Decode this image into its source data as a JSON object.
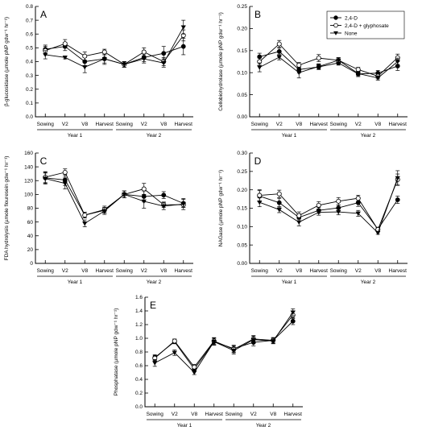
{
  "chart_data": [
    {
      "type": "line",
      "panel": "A",
      "ylabel": "β-glucosidase (µmole pNP gdw⁻¹ hr⁻¹)",
      "ylim": [
        0,
        0.8
      ],
      "yticks": [
        "0.0",
        "0.1",
        "0.2",
        "0.3",
        "0.4",
        "0.5",
        "0.6",
        "0.7",
        "0.8"
      ],
      "categories": [
        "Sowing",
        "V2",
        "V8",
        "Harvest",
        "Sowing",
        "V2",
        "V8",
        "Harvest"
      ],
      "groups": [
        "Year 1",
        "Year 2"
      ],
      "series": [
        {
          "name": "2,4-D",
          "values": [
            0.49,
            0.51,
            0.4,
            0.42,
            0.38,
            0.43,
            0.46,
            0.51
          ],
          "err": [
            0.03,
            0.03,
            0.03,
            0.04,
            0.02,
            0.03,
            0.05,
            0.06
          ]
        },
        {
          "name": "2,4-D + glyphosate",
          "values": [
            0.48,
            0.53,
            0.44,
            0.47,
            0.38,
            0.47,
            0.4,
            0.59
          ],
          "err": [
            0.03,
            0.03,
            0.03,
            0.02,
            0.02,
            0.03,
            0.03,
            0.04
          ]
        },
        {
          "name": "None",
          "values": [
            0.45,
            0.43,
            0.36,
            0.42,
            0.38,
            0.42,
            0.39,
            0.65
          ],
          "err": [
            0.03,
            0.01,
            0.04,
            0.03,
            0.02,
            0.03,
            0.03,
            0.05
          ]
        }
      ]
    },
    {
      "type": "line",
      "panel": "B",
      "ylabel": "Cellobiohydrolase (µmole pNP gdw⁻¹ hr⁻¹)",
      "ylim": [
        0,
        0.25
      ],
      "yticks": [
        "0.00",
        "0.05",
        "0.10",
        "0.15",
        "0.20",
        "0.25"
      ],
      "categories": [
        "Sowing",
        "V2",
        "V8",
        "Harvest",
        "Sowing",
        "V2",
        "V8",
        "Harvest"
      ],
      "groups": [
        "Year 1",
        "Year 2"
      ],
      "series": [
        {
          "name": "2,4-D",
          "values": [
            0.136,
            0.148,
            0.107,
            0.113,
            0.122,
            0.097,
            0.099,
            0.115
          ],
          "err": [
            0.008,
            0.008,
            0.008,
            0.006,
            0.005,
            0.006,
            0.006,
            0.01
          ]
        },
        {
          "name": "2,4-D + glyphosate",
          "values": [
            0.125,
            0.165,
            0.117,
            0.133,
            0.128,
            0.107,
            0.092,
            0.134
          ],
          "err": [
            0.008,
            0.008,
            0.006,
            0.008,
            0.006,
            0.005,
            0.006,
            0.008
          ]
        },
        {
          "name": "None",
          "values": [
            0.112,
            0.135,
            0.1,
            0.114,
            0.128,
            0.098,
            0.088,
            0.125
          ],
          "err": [
            0.01,
            0.006,
            0.012,
            0.006,
            0.006,
            0.005,
            0.005,
            0.008
          ]
        }
      ],
      "legend": "top-right"
    },
    {
      "type": "line",
      "panel": "C",
      "ylabel": "FDA hydrolysis (µmole flouresein gdw⁻¹ hr⁻¹)",
      "ylim": [
        0,
        160
      ],
      "yticks": [
        "0",
        "20",
        "40",
        "60",
        "80",
        "100",
        "120",
        "140",
        "160"
      ],
      "categories": [
        "Sowing",
        "V2",
        "V8",
        "Harvest",
        "Sowing",
        "V2",
        "V8",
        "Harvest"
      ],
      "groups": [
        "Year 1",
        "Year 2"
      ],
      "series": [
        {
          "name": "2,4-D",
          "values": [
            124,
            121,
            70,
            77,
            100,
            97,
            99,
            87
          ],
          "err": [
            8,
            8,
            4,
            4,
            5,
            8,
            5,
            6
          ]
        },
        {
          "name": "2,4-D + glyphosate",
          "values": [
            125,
            132,
            70,
            78,
            100,
            108,
            85,
            85
          ],
          "err": [
            8,
            5,
            4,
            5,
            5,
            8,
            4,
            4
          ]
        },
        {
          "name": "None",
          "values": [
            123,
            116,
            58,
            76,
            100,
            90,
            83,
            86
          ],
          "err": [
            8,
            8,
            5,
            5,
            5,
            10,
            5,
            8
          ]
        }
      ]
    },
    {
      "type": "line",
      "panel": "D",
      "ylabel": "NAGase (µmole pNP gdw⁻¹ hr⁻¹)",
      "ylim": [
        0,
        0.3
      ],
      "yticks": [
        "0.00",
        "0.05",
        "0.10",
        "0.15",
        "0.20",
        "0.25",
        "0.30"
      ],
      "categories": [
        "Sowing",
        "V2",
        "V8",
        "Harvest",
        "Sowing",
        "V2",
        "V8",
        "Harvest"
      ],
      "groups": [
        "Year 1",
        "Year 2"
      ],
      "series": [
        {
          "name": "2,4-D",
          "values": [
            0.183,
            0.165,
            0.125,
            0.144,
            0.151,
            0.165,
            0.093,
            0.173
          ],
          "err": [
            0.015,
            0.012,
            0.01,
            0.008,
            0.008,
            0.01,
            0.005,
            0.01
          ]
        },
        {
          "name": "2,4-D + glyphosate",
          "values": [
            0.185,
            0.189,
            0.13,
            0.158,
            0.169,
            0.177,
            0.092,
            0.228
          ],
          "err": [
            0.015,
            0.01,
            0.01,
            0.01,
            0.01,
            0.008,
            0.005,
            0.015
          ]
        },
        {
          "name": "None",
          "values": [
            0.166,
            0.146,
            0.112,
            0.139,
            0.14,
            0.136,
            0.083,
            0.232
          ],
          "err": [
            0.012,
            0.008,
            0.01,
            0.008,
            0.008,
            0.008,
            0.004,
            0.02
          ]
        }
      ]
    },
    {
      "type": "line",
      "panel": "E",
      "ylabel": "Phosphatase (µmole pNP gdw⁻¹ hr⁻¹)",
      "ylim": [
        0,
        1.6
      ],
      "yticks": [
        "0.0",
        "0.2",
        "0.4",
        "0.6",
        "0.8",
        "1.0",
        "1.2",
        "1.4",
        "1.6"
      ],
      "categories": [
        "Sowing",
        "V2",
        "V8",
        "Harvest",
        "Sowing",
        "V2",
        "V8",
        "Harvest"
      ],
      "groups": [
        "Year 1",
        "Year 2"
      ],
      "series": [
        {
          "name": "2,4-D",
          "values": [
            0.72,
            0.95,
            0.55,
            0.95,
            0.85,
            0.94,
            0.97,
            1.25
          ],
          "err": [
            0.04,
            0.03,
            0.04,
            0.05,
            0.05,
            0.05,
            0.04,
            0.05
          ]
        },
        {
          "name": "2,4-D + glyphosate",
          "values": [
            0.71,
            0.96,
            0.58,
            0.96,
            0.84,
            0.99,
            0.97,
            1.34
          ],
          "err": [
            0.04,
            0.03,
            0.04,
            0.05,
            0.05,
            0.05,
            0.04,
            0.05
          ]
        },
        {
          "name": "None",
          "values": [
            0.64,
            0.79,
            0.5,
            0.95,
            0.82,
            0.98,
            0.96,
            1.38
          ],
          "err": [
            0.05,
            0.04,
            0.03,
            0.05,
            0.05,
            0.05,
            0.04,
            0.05
          ]
        }
      ]
    }
  ],
  "legend": {
    "items": [
      "2,4-D",
      "2,4-D + glyphosate",
      "None"
    ],
    "markers": [
      "filled-circle",
      "open-circle",
      "filled-triangle-down"
    ]
  },
  "colors": {
    "line": "#000000",
    "marker_fill": "#000000",
    "open_fill": "#ffffff"
  }
}
